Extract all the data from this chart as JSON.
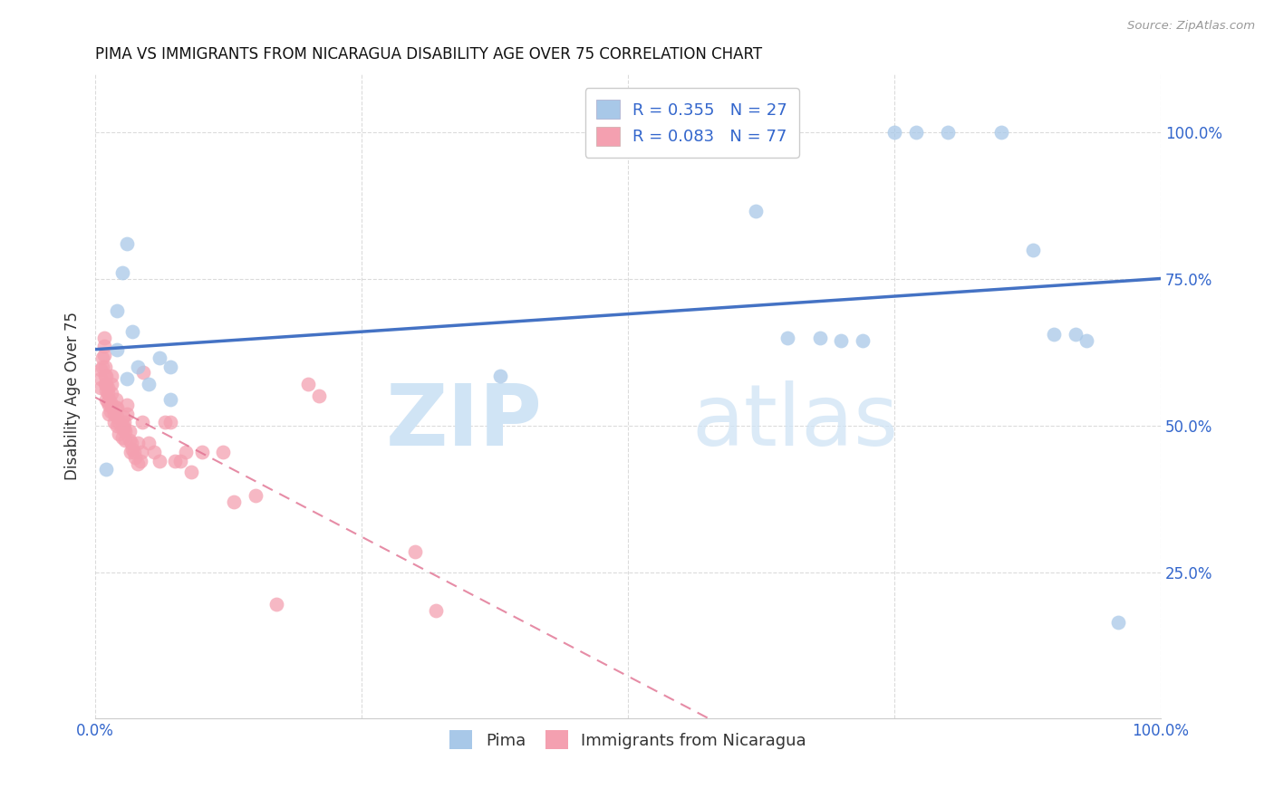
{
  "title": "PIMA VS IMMIGRANTS FROM NICARAGUA DISABILITY AGE OVER 75 CORRELATION CHART",
  "source": "Source: ZipAtlas.com",
  "ylabel": "Disability Age Over 75",
  "legend_blue_label": "R = 0.355   N = 27",
  "legend_pink_label": "R = 0.083   N = 77",
  "legend_bottom_blue": "Pima",
  "legend_bottom_pink": "Immigrants from Nicaragua",
  "blue_color": "#a8c8e8",
  "pink_color": "#f4a0b0",
  "blue_line_color": "#4472c4",
  "pink_line_color": "#e07090",
  "background_color": "#ffffff",
  "watermark_zip": "ZIP",
  "watermark_atlas": "atlas",
  "pima_x": [
    0.01,
    0.02,
    0.02,
    0.025,
    0.03,
    0.03,
    0.035,
    0.04,
    0.05,
    0.06,
    0.07,
    0.07,
    0.38,
    0.62,
    0.65,
    0.68,
    0.7,
    0.72,
    0.75,
    0.77,
    0.8,
    0.85,
    0.88,
    0.9,
    0.92,
    0.93,
    0.96
  ],
  "pima_y": [
    0.425,
    0.63,
    0.695,
    0.76,
    0.81,
    0.58,
    0.66,
    0.6,
    0.57,
    0.615,
    0.6,
    0.545,
    0.585,
    0.865,
    0.65,
    0.65,
    0.645,
    0.645,
    1.0,
    1.0,
    1.0,
    1.0,
    0.8,
    0.655,
    0.655,
    0.645,
    0.165
  ],
  "nic_x": [
    0.005,
    0.005,
    0.005,
    0.007,
    0.007,
    0.008,
    0.008,
    0.008,
    0.009,
    0.009,
    0.009,
    0.01,
    0.01,
    0.01,
    0.01,
    0.012,
    0.012,
    0.012,
    0.013,
    0.013,
    0.013,
    0.014,
    0.014,
    0.015,
    0.015,
    0.015,
    0.016,
    0.018,
    0.018,
    0.019,
    0.019,
    0.02,
    0.02,
    0.02,
    0.022,
    0.022,
    0.025,
    0.025,
    0.026,
    0.026,
    0.027,
    0.027,
    0.028,
    0.028,
    0.03,
    0.03,
    0.032,
    0.032,
    0.033,
    0.034,
    0.035,
    0.036,
    0.037,
    0.04,
    0.04,
    0.042,
    0.043,
    0.044,
    0.045,
    0.05,
    0.055,
    0.06,
    0.065,
    0.07,
    0.075,
    0.08,
    0.085,
    0.09,
    0.1,
    0.12,
    0.13,
    0.15,
    0.17,
    0.2,
    0.21,
    0.3,
    0.32
  ],
  "nic_y": [
    0.565,
    0.58,
    0.595,
    0.6,
    0.615,
    0.62,
    0.635,
    0.65,
    0.57,
    0.585,
    0.6,
    0.545,
    0.56,
    0.57,
    0.585,
    0.54,
    0.555,
    0.565,
    0.52,
    0.535,
    0.545,
    0.525,
    0.54,
    0.555,
    0.57,
    0.585,
    0.53,
    0.505,
    0.52,
    0.53,
    0.545,
    0.5,
    0.515,
    0.53,
    0.485,
    0.505,
    0.48,
    0.495,
    0.5,
    0.515,
    0.495,
    0.505,
    0.475,
    0.49,
    0.52,
    0.535,
    0.475,
    0.49,
    0.455,
    0.47,
    0.46,
    0.455,
    0.445,
    0.435,
    0.47,
    0.44,
    0.455,
    0.505,
    0.59,
    0.47,
    0.455,
    0.44,
    0.505,
    0.505,
    0.44,
    0.44,
    0.455,
    0.42,
    0.455,
    0.455,
    0.37,
    0.38,
    0.195,
    0.57,
    0.55,
    0.285,
    0.185
  ],
  "xlim": [
    0.0,
    1.0
  ],
  "ylim": [
    0.0,
    1.1
  ],
  "xticks": [
    0.0,
    0.25,
    0.5,
    0.75,
    1.0
  ],
  "yticks": [
    0.0,
    0.25,
    0.5,
    0.75,
    1.0
  ],
  "xtick_labels": [
    "0.0%",
    "",
    "",
    "",
    "100.0%"
  ],
  "ytick_labels_right": [
    "",
    "25.0%",
    "50.0%",
    "75.0%",
    "100.0%"
  ]
}
